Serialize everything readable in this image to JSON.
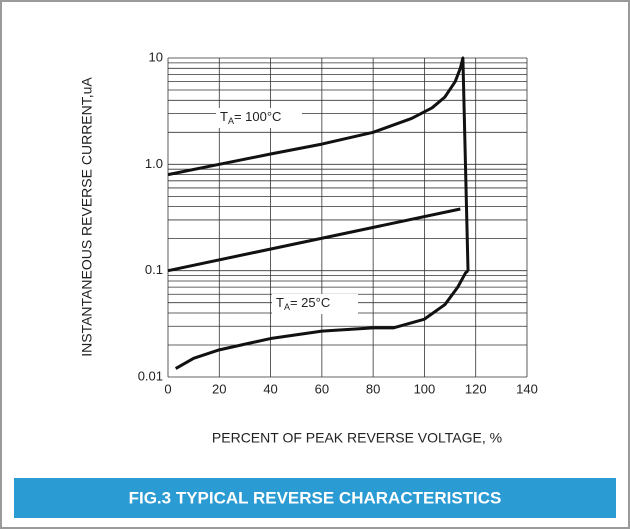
{
  "chart_data": {
    "type": "line",
    "caption": "FIG.3 TYPICAL REVERSE CHARACTERISTICS",
    "xlabel": "PERCENT OF PEAK REVERSE VOLTAGE, %",
    "ylabel": "INSTANTANEOUS REVERSE CURRENT,uA",
    "xlim": [
      0,
      140
    ],
    "xticks": [
      0,
      20,
      40,
      60,
      80,
      100,
      120,
      140
    ],
    "ylim": [
      0.01,
      10
    ],
    "yticks": [
      {
        "value": 10,
        "label": "10"
      },
      {
        "value": 1,
        "label": "1.0"
      },
      {
        "value": 0.1,
        "label": "0.1"
      },
      {
        "value": 0.01,
        "label": "0.01"
      }
    ],
    "log_y": true,
    "grid": true,
    "minor_grid": true,
    "color": "#111111",
    "series": [
      {
        "x": [
          0,
          20,
          40,
          60,
          80,
          95,
          103,
          108,
          112,
          114,
          115,
          117
        ],
        "values": [
          0.8,
          1.0,
          1.25,
          1.55,
          2.0,
          2.7,
          3.4,
          4.3,
          6.0,
          8.0,
          10,
          0.1
        ]
      },
      {
        "x": [
          0,
          114
        ],
        "values": [
          0.1,
          0.38
        ]
      },
      {
        "x": [
          3,
          10,
          20,
          40,
          60,
          80,
          88,
          100,
          108,
          113,
          116,
          117
        ],
        "values": [
          0.012,
          0.015,
          0.018,
          0.023,
          0.027,
          0.029,
          0.029,
          0.035,
          0.048,
          0.07,
          0.095,
          0.1
        ]
      }
    ],
    "annotations": [
      {
        "text": "T",
        "sub": "A",
        "rest": "= 100°C"
      },
      {
        "text": "T",
        "sub": "A",
        "rest": "= 25°C"
      }
    ]
  }
}
